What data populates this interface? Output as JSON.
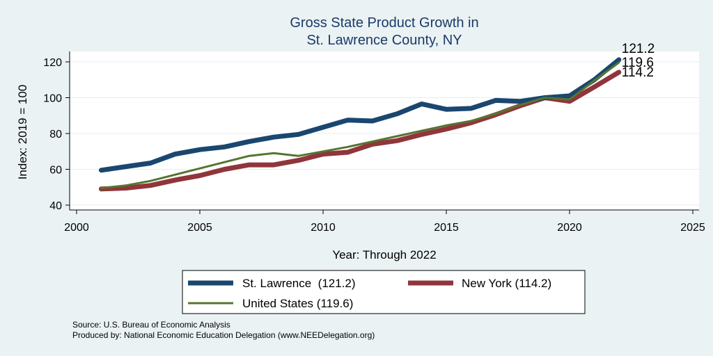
{
  "chart_data": {
    "type": "line",
    "title": [
      "Gross State Product Growth in",
      "St. Lawrence County, NY"
    ],
    "xlabel": "Year: Through 2022",
    "ylabel": "Index: 2019 = 100",
    "xlim": [
      2000,
      2025
    ],
    "ylim": [
      40,
      125
    ],
    "xticks": [
      2000,
      2005,
      2010,
      2015,
      2020,
      2025
    ],
    "yticks": [
      40,
      60,
      80,
      100,
      120
    ],
    "grid": "horizontal",
    "x": [
      2001,
      2002,
      2003,
      2004,
      2005,
      2006,
      2007,
      2008,
      2009,
      2010,
      2011,
      2012,
      2013,
      2014,
      2015,
      2016,
      2017,
      2018,
      2019,
      2020,
      2021,
      2022
    ],
    "series": [
      {
        "name": "St. Lawrence",
        "legend": "St. Lawrence  (121.2)",
        "end_label": "121.2",
        "color": "#1a476f",
        "values": [
          59.5,
          61.5,
          63.5,
          68.5,
          71,
          72.5,
          75.5,
          78,
          79.5,
          83.5,
          87.5,
          87,
          91,
          96.5,
          93.5,
          94,
          98.5,
          98,
          100,
          101,
          110,
          121.2
        ]
      },
      {
        "name": "New York",
        "legend": "New York (114.2)",
        "end_label": "114.2",
        "color": "#90353b",
        "values": [
          49,
          49.5,
          51,
          54,
          56.5,
          60,
          62.5,
          62.5,
          65,
          68.5,
          69.5,
          74,
          76,
          79.5,
          82.5,
          86,
          90.5,
          95.5,
          100,
          98,
          106,
          114.2
        ]
      },
      {
        "name": "United States",
        "legend": "United States (119.6)",
        "end_label": "119.6",
        "color": "#55752f",
        "values": [
          49.5,
          51,
          53.5,
          57,
          60.5,
          64,
          67.5,
          69,
          67.5,
          70,
          72.5,
          75.5,
          78.5,
          81.5,
          84.5,
          87,
          91,
          96,
          100,
          99,
          109.5,
          119.6
        ]
      }
    ],
    "legend_position": "bottom"
  },
  "notes": {
    "source": "Source: U.S. Bureau of Economic Analysis",
    "producer": "Produced by: National Economic Education Delegation (www.NEEDelegation.org)"
  }
}
